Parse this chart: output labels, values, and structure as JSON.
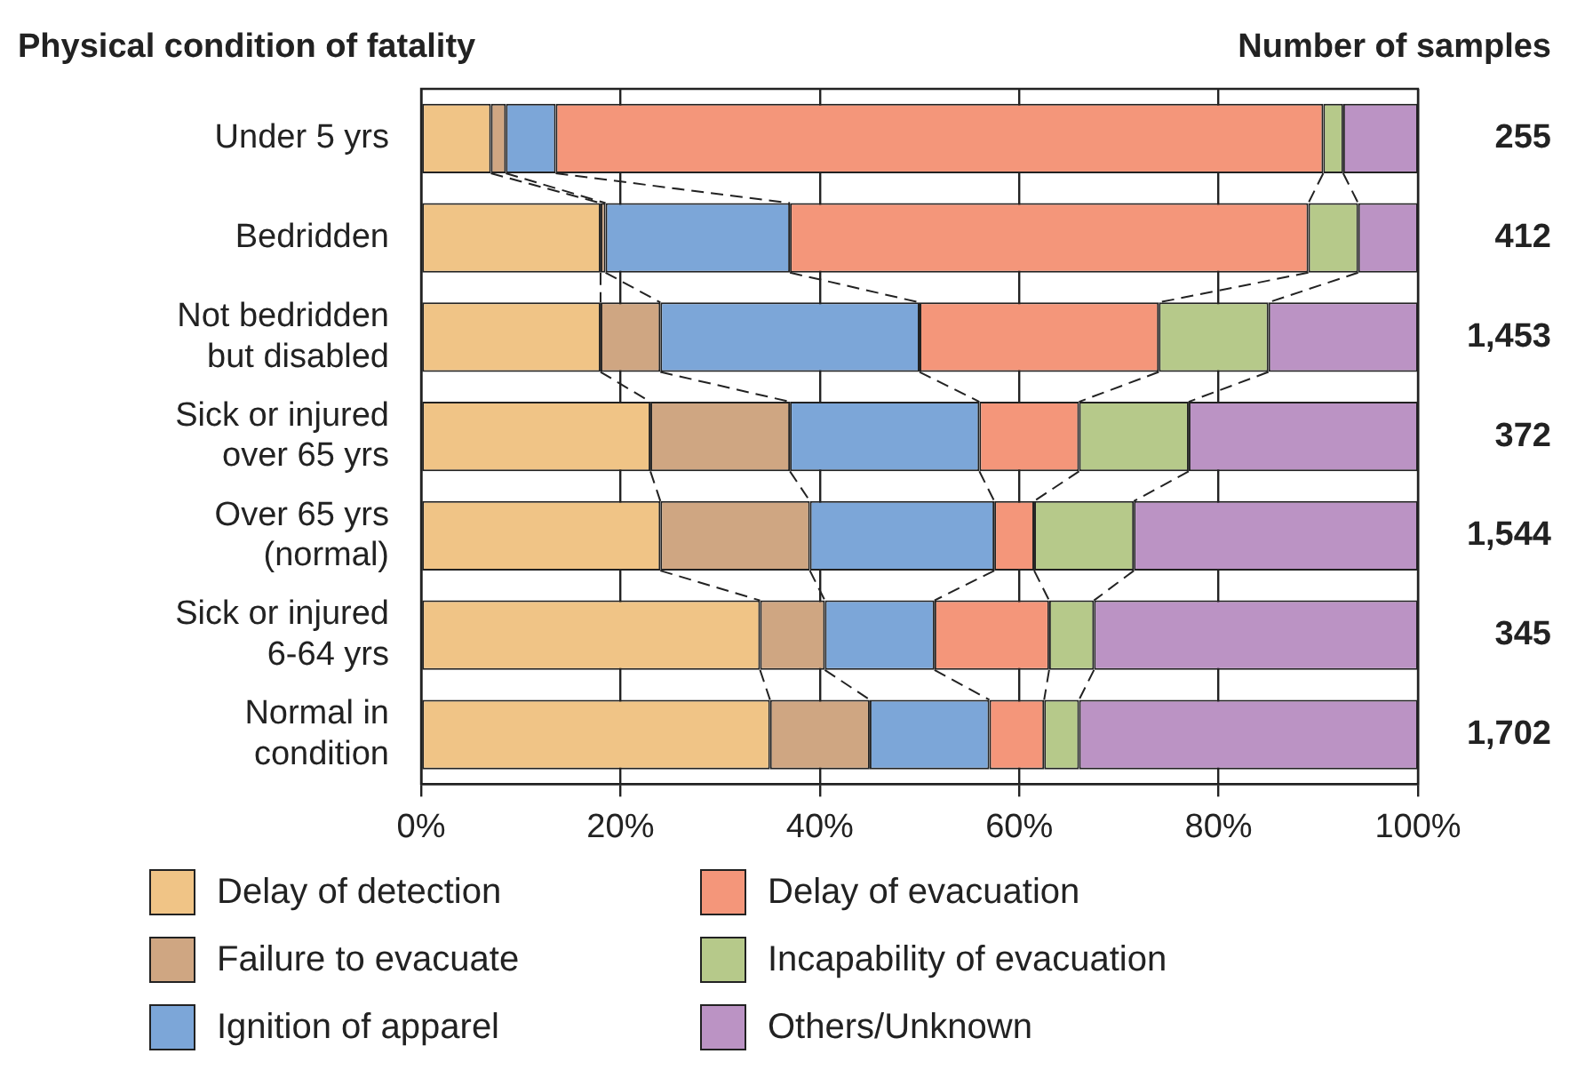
{
  "chart_data": {
    "type": "bar",
    "orientation": "horizontal",
    "stacked": true,
    "ylabel": "Physical condition of fatality",
    "categories": [
      "Under 5 yrs",
      "Bedridden",
      "Not bedridden but disabled",
      "Sick or injured over 65 yrs",
      "Over 65 yrs (normal)",
      "Sick or injured 6-64 yrs",
      "Normal in condition"
    ],
    "series": [
      {
        "name": "Delay of detection",
        "color": "#f0c486",
        "values": [
          7,
          18,
          18,
          23,
          24,
          34,
          35
        ]
      },
      {
        "name": "Failure to evacuate",
        "color": "#cfa682",
        "values": [
          1.5,
          0.5,
          6,
          14,
          15,
          6.5,
          10
        ]
      },
      {
        "name": "Ignition of apparel",
        "color": "#7ca6d8",
        "values": [
          5,
          18.5,
          26,
          19,
          18.5,
          11,
          12
        ]
      },
      {
        "name": "Delay of evacuation",
        "color": "#f4967a",
        "values": [
          77,
          52,
          24,
          10,
          4,
          11.5,
          5.5
        ]
      },
      {
        "name": "Incapability of evacuation",
        "color": "#b6c98a",
        "values": [
          2,
          5,
          11,
          11,
          10,
          4.5,
          3.5
        ]
      },
      {
        "name": "Others/Unknown",
        "color": "#bb93c4",
        "values": [
          7.5,
          6,
          15,
          23,
          28.5,
          32.5,
          34
        ]
      }
    ],
    "xlim": [
      0,
      100
    ],
    "xticks": [
      {
        "value": 0,
        "label": "0%"
      },
      {
        "value": 20,
        "label": "20%"
      },
      {
        "value": 40,
        "label": "40%"
      },
      {
        "value": 60,
        "label": "60%"
      },
      {
        "value": 80,
        "label": "80%"
      },
      {
        "value": 100,
        "label": "100%"
      }
    ],
    "grid": "x",
    "legend": "bottom",
    "annotations": [
      "Number of samples",
      "255",
      "412",
      "1,453",
      "372",
      "1,544",
      "345",
      "1,702"
    ]
  }
}
